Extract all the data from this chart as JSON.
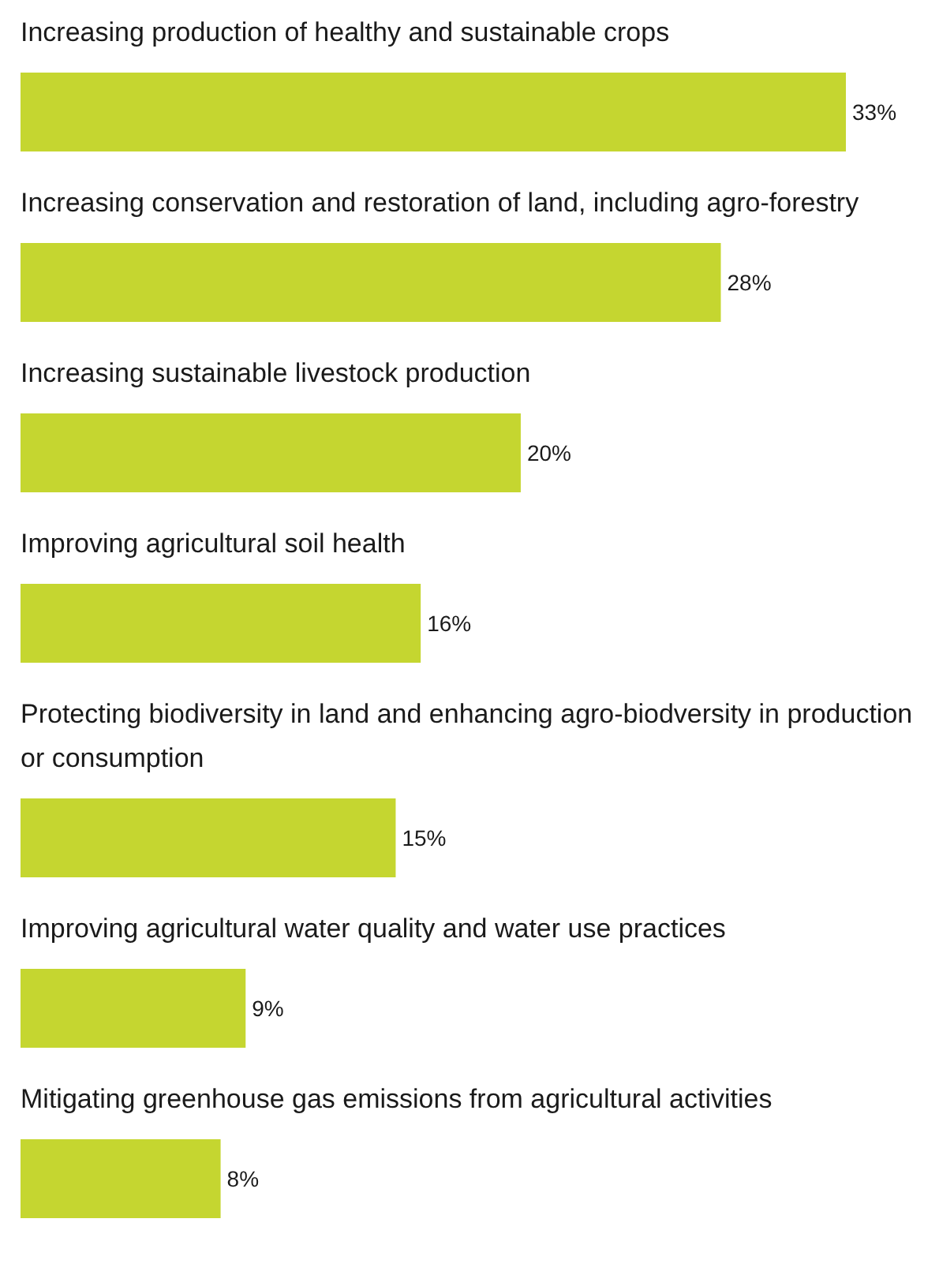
{
  "chart_data": {
    "type": "bar",
    "orientation": "horizontal",
    "color": "#c5d630",
    "categories": [
      "Increasing production of healthy and sustainable crops",
      "Increasing conservation and restoration of land, including agro-forestry",
      "Increasing sustainable livestock production",
      "Improving agricultural soil health",
      "Protecting biodiversity in land and enhancing agro-biodversity in production or consumption",
      "Improving agricultural water quality and water use practices",
      "Mitigating greenhouse gas emissions from agricultural activities"
    ],
    "values": [
      33,
      28,
      20,
      16,
      15,
      9,
      8
    ],
    "value_labels": [
      "33%",
      "28%",
      "20%",
      "16%",
      "15%",
      "9%",
      "8%"
    ]
  }
}
